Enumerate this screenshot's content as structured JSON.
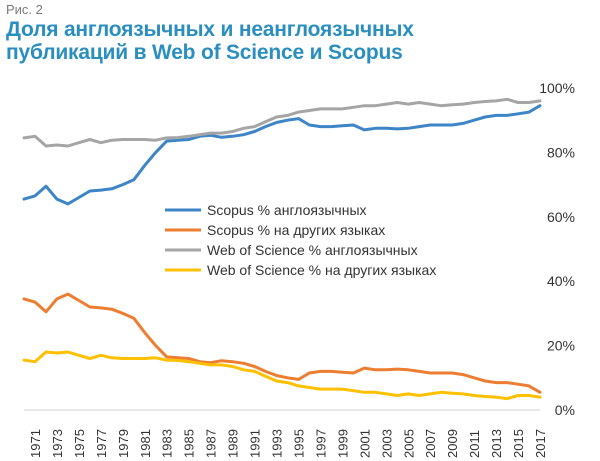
{
  "figure": {
    "label": "Рис. 2",
    "title_line1": "Доля англоязычных и неанглоязычных",
    "title_line2": "публикаций в Web of Science и Scopus"
  },
  "chart_data": {
    "type": "line",
    "title": "Доля англоязычных и неанглоязычных публикаций в Web of Science и Scopus",
    "xlabel": "",
    "ylabel": "",
    "ylim": [
      0,
      100
    ],
    "y_ticks": [
      "0%",
      "20%",
      "40%",
      "60%",
      "80%",
      "100%"
    ],
    "y_tick_values": [
      0,
      20,
      40,
      60,
      80,
      100
    ],
    "x_tick_labels": [
      "1971",
      "1973",
      "1975",
      "1977",
      "1979",
      "1981",
      "1983",
      "1985",
      "1987",
      "1989",
      "1991",
      "1993",
      "1995",
      "1997",
      "1999",
      "2001",
      "2003",
      "2005",
      "2007",
      "2009",
      "2011",
      "2013",
      "2015",
      "2017"
    ],
    "x": [
      1970,
      1971,
      1972,
      1973,
      1974,
      1975,
      1976,
      1977,
      1978,
      1979,
      1980,
      1981,
      1982,
      1983,
      1984,
      1985,
      1986,
      1987,
      1988,
      1989,
      1990,
      1991,
      1992,
      1993,
      1994,
      1995,
      1996,
      1997,
      1998,
      1999,
      2000,
      2001,
      2002,
      2003,
      2004,
      2005,
      2006,
      2007,
      2008,
      2009,
      2010,
      2011,
      2012,
      2013,
      2014,
      2015,
      2016,
      2017
    ],
    "legend_position": "center",
    "series": [
      {
        "name": "Scopus  % англоязычных",
        "color": "#3d85c6",
        "values": [
          65.5,
          66.5,
          69.5,
          65.5,
          64,
          66,
          68,
          68.3,
          68.7,
          70,
          71.5,
          76,
          80,
          83.5,
          83.8,
          84,
          85,
          85.3,
          84.7,
          85,
          85.5,
          86.5,
          88,
          89.3,
          90,
          90.5,
          88.5,
          88,
          88,
          88.3,
          88.5,
          87,
          87.5,
          87.5,
          87.3,
          87.5,
          88,
          88.5,
          88.5,
          88.5,
          89,
          90,
          91,
          91.5,
          91.5,
          92,
          92.5,
          94.5
        ]
      },
      {
        "name": "Scopus  % на других языках",
        "color": "#ed7d31",
        "values": [
          34.5,
          33.5,
          30.5,
          34.5,
          36,
          34,
          32,
          31.7,
          31.3,
          30,
          28.5,
          24,
          20,
          16.5,
          16.2,
          16,
          15,
          14.7,
          15.3,
          15,
          14.5,
          13.5,
          12,
          10.7,
          10,
          9.5,
          11.5,
          12,
          12,
          11.7,
          11.5,
          13,
          12.5,
          12.5,
          12.7,
          12.5,
          12,
          11.5,
          11.5,
          11.5,
          11,
          10,
          9,
          8.5,
          8.5,
          8,
          7.5,
          5.5
        ]
      },
      {
        "name": "Web of Science % англоязычных",
        "color": "#a5a5a5",
        "values": [
          84.5,
          85,
          82,
          82.3,
          82,
          83,
          84,
          83,
          83.8,
          84,
          84,
          84,
          83.8,
          84.5,
          84.6,
          85,
          85.5,
          86,
          86,
          86.5,
          87.5,
          88,
          89.5,
          91,
          91.5,
          92.5,
          93,
          93.5,
          93.5,
          93.5,
          94,
          94.5,
          94.5,
          95,
          95.5,
          95,
          95.5,
          95,
          94.5,
          94.8,
          95,
          95.5,
          95.8,
          96,
          96.5,
          95.5,
          95.5,
          96
        ]
      },
      {
        "name": "Web of Science % на других языках",
        "color": "#ffc000",
        "values": [
          15.5,
          15,
          18,
          17.7,
          18,
          17,
          16,
          17,
          16.2,
          16,
          16,
          16,
          16.2,
          15.5,
          15.4,
          15,
          14.5,
          14,
          14,
          13.5,
          12.5,
          12,
          10.5,
          9,
          8.5,
          7.5,
          7,
          6.5,
          6.5,
          6.5,
          6,
          5.5,
          5.5,
          5,
          4.5,
          5,
          4.5,
          5,
          5.5,
          5.2,
          5,
          4.5,
          4.2,
          4,
          3.5,
          4.5,
          4.5,
          4
        ]
      }
    ]
  }
}
